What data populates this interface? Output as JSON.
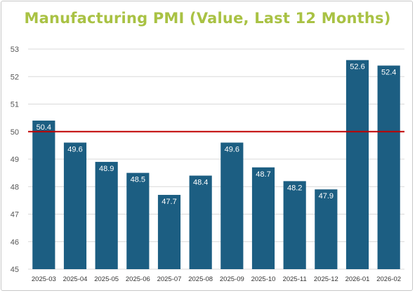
{
  "chart_data": {
    "type": "bar",
    "title": "Manufacturing PMI (Value, Last 12 Months)",
    "categories": [
      "2025-03",
      "2025-04",
      "2025-05",
      "2025-06",
      "2025-07",
      "2025-08",
      "2025-09",
      "2025-10",
      "2025-11",
      "2025-12",
      "2026-01",
      "2026-02"
    ],
    "values": [
      50.4,
      49.6,
      48.9,
      48.5,
      47.7,
      48.4,
      49.6,
      48.7,
      48.2,
      47.9,
      52.6,
      52.4
    ],
    "data_labels": [
      "50.4",
      "49.6",
      "48.9",
      "48.5",
      "47.7",
      "48.4",
      "49.6",
      "48.7",
      "48.2",
      "47.9",
      "52.6",
      "52.4"
    ],
    "ylim": [
      45,
      53
    ],
    "yticks": [
      45,
      46,
      47,
      48,
      49,
      50,
      51,
      52,
      53
    ],
    "reference_line": 50,
    "grid": true,
    "colors": {
      "bar": "#1c5e82",
      "reference_line": "#c00000",
      "title": "#a9c244",
      "grid": "#d9d9d9"
    }
  }
}
